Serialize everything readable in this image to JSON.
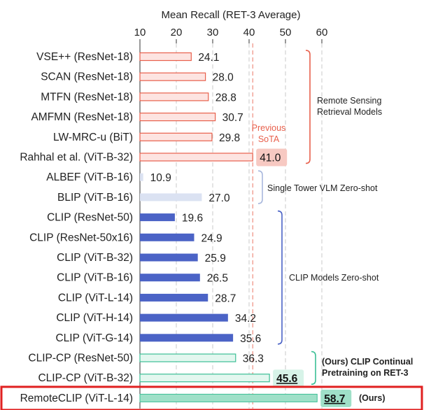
{
  "chart_data": {
    "type": "bar",
    "orientation": "horizontal",
    "title": "Mean Recall (RET-3 Average)",
    "xlim": [
      10,
      60
    ],
    "xticks": [
      10,
      20,
      30,
      40,
      50,
      60
    ],
    "grid": "vertical dashed",
    "categories": [
      "VSE++ (ResNet-18)",
      "SCAN (ResNet-18)",
      "MTFN (ResNet-18)",
      "AMFMN (ResNet-18)",
      "LW-MRC-u (BiT)",
      "Rahhal et al. (ViT-B-32)",
      "ALBEF (ViT-B-16)",
      "BLIP (ViT-B-16)",
      "CLIP (ResNet-50)",
      "CLIP (ResNet-50x16)",
      "CLIP (ViT-B-32)",
      "CLIP (ViT-B-16)",
      "CLIP (ViT-L-14)",
      "CLIP (ViT-H-14)",
      "CLIP (ViT-G-14)",
      "CLIP-CP (ResNet-50)",
      "CLIP-CP (ViT-B-32)",
      "RemoteCLIP (ViT-L-14)"
    ],
    "values": [
      24.1,
      28.0,
      28.8,
      30.7,
      29.8,
      41.0,
      10.9,
      27.0,
      19.6,
      24.9,
      25.9,
      26.5,
      28.7,
      34.2,
      35.6,
      36.3,
      45.6,
      58.7
    ],
    "value_labels": [
      "24.1",
      "28.0",
      "28.8",
      "30.7",
      "29.8",
      "41.0",
      "10.9",
      "27.0",
      "19.6",
      "24.9",
      "25.9",
      "26.5",
      "28.7",
      "34.2",
      "35.6",
      "36.3",
      "45.6",
      "58.7"
    ],
    "groups": [
      {
        "label": "Remote Sensing\nRetrieval Models",
        "start": 0,
        "end": 5,
        "color": "#e8604c",
        "style": "outline",
        "fill": "#fde4e1"
      },
      {
        "label": "Single Tower VLM Zero-shot",
        "start": 6,
        "end": 7,
        "color": "#a9b8dd",
        "style": "solid",
        "fill": "#dbe2f2"
      },
      {
        "label": "CLIP Models Zero-shot",
        "start": 8,
        "end": 14,
        "color": "#4b63c6",
        "style": "solid",
        "fill": "#4b63c6"
      },
      {
        "label": "(Ours) CLIP Continual\nPretraining on RET-3",
        "start": 15,
        "end": 16,
        "color": "#3bbf95",
        "style": "outline",
        "fill": "#e3f7ef"
      },
      {
        "label": "(Ours)",
        "start": 17,
        "end": 17,
        "color": "#3bbf95",
        "style": "solid",
        "fill": "#9fe0c8"
      }
    ],
    "reference_line": {
      "value": 41.0,
      "label": "Previous\nSoTA",
      "color": "#e8604c"
    },
    "highlighted_values": [
      5,
      16,
      17
    ],
    "highlight_box_row": 17,
    "highlight_box_color": "#e02020"
  }
}
